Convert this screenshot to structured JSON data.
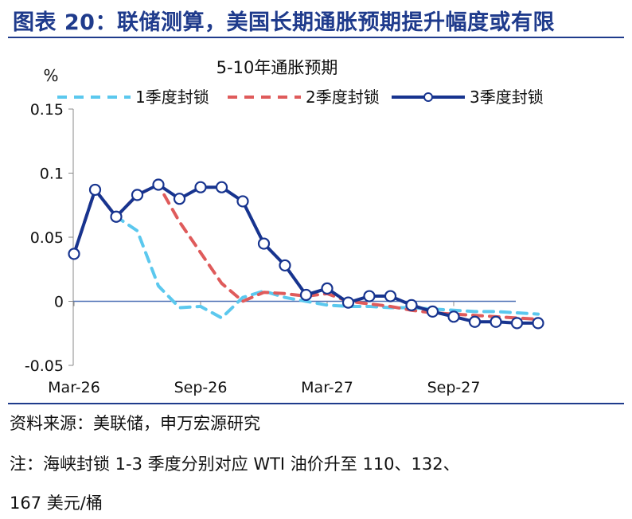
{
  "header": {
    "title": "图表 20：联储测算，美国长期通胀预期提升幅度或有限"
  },
  "footer": {
    "source": "资料来源：美联储，申万宏源研究",
    "note_line1": "注：海峡封锁 1-3 季度分别对应 WTI 油价升至 110、132、",
    "note_line2": "167 美元/桶"
  },
  "colors": {
    "brand": "#1f3b8c",
    "series1": "#5bc8ee",
    "series2": "#df5b5b",
    "series3": "#17348f",
    "axis_zero": "#4a6fb5"
  },
  "chart_data": {
    "type": "line",
    "title": "5-10年通胀预期",
    "ylabel": "%",
    "ylim": [
      -0.05,
      0.15
    ],
    "yticks": [
      -0.05,
      0,
      0.05,
      0.1,
      0.15
    ],
    "ytick_labels": [
      "-0.05",
      "0",
      "0.05",
      "0.1",
      "0.15"
    ],
    "x": [
      "2026-01",
      "2026-02",
      "2026-03",
      "2026-04",
      "2026-05",
      "2026-06",
      "2026-07",
      "2026-08",
      "2026-09",
      "2026-10",
      "2026-11",
      "2026-12",
      "2027-01",
      "2027-02",
      "2027-03",
      "2027-04",
      "2027-05",
      "2027-06",
      "2027-07",
      "2027-08",
      "2027-09",
      "2027-10",
      "2027-11"
    ],
    "xtick_labels": [
      {
        "at": "2026-01",
        "label": "Mar-26"
      },
      {
        "at": "2026-07",
        "label": "Sep-26"
      },
      {
        "at": "2027-01",
        "label": "Mar-27"
      },
      {
        "at": "2027-07",
        "label": "Sep-27"
      }
    ],
    "legend": "top",
    "series": [
      {
        "name": "1季度封锁",
        "style": "dashed",
        "color": "#5bc8ee",
        "markers": false,
        "values": [
          0.037,
          0.087,
          0.066,
          0.055,
          0.012,
          -0.005,
          -0.004,
          -0.013,
          0.003,
          0.008,
          0.003,
          0.0,
          -0.003,
          -0.004,
          -0.004,
          -0.005,
          -0.005,
          -0.006,
          -0.007,
          -0.008,
          -0.008,
          -0.009,
          -0.01
        ]
      },
      {
        "name": "2季度封锁",
        "style": "dashed",
        "color": "#df5b5b",
        "markers": false,
        "values": [
          0.037,
          0.087,
          0.066,
          0.083,
          0.091,
          0.062,
          0.038,
          0.014,
          0.0,
          0.007,
          0.006,
          0.004,
          0.006,
          0.0,
          -0.002,
          -0.004,
          -0.007,
          -0.009,
          -0.01,
          -0.011,
          -0.012,
          -0.013,
          -0.014
        ]
      },
      {
        "name": "3季度封锁",
        "style": "solid",
        "color": "#17348f",
        "markers": true,
        "values": [
          0.037,
          0.087,
          0.066,
          0.083,
          0.091,
          0.08,
          0.089,
          0.089,
          0.078,
          0.045,
          0.028,
          0.005,
          0.01,
          -0.001,
          0.004,
          0.004,
          -0.003,
          -0.008,
          -0.012,
          -0.016,
          -0.016,
          -0.017,
          -0.017
        ]
      }
    ]
  }
}
